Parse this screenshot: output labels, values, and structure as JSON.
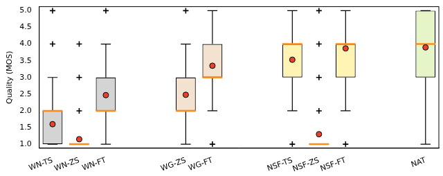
{
  "chart_data": {
    "type": "box",
    "y_label": "Quality (MOS)",
    "categories": [
      "WN-TS",
      "WN-ZS",
      "WN-FT",
      null,
      null,
      "WG-ZS",
      "WG-FT",
      null,
      null,
      "NSF-TS",
      "NSF-ZS",
      "NSF-FT",
      null,
      null,
      "NAT"
    ],
    "whisker_low": [
      1,
      1,
      1,
      null,
      null,
      1,
      2,
      null,
      null,
      2,
      1,
      2,
      null,
      null,
      1
    ],
    "q1": [
      1,
      1,
      2,
      null,
      null,
      2,
      3,
      null,
      null,
      3,
      1,
      3,
      null,
      null,
      3
    ],
    "median": [
      2,
      1,
      2,
      null,
      null,
      2,
      3,
      null,
      null,
      4,
      1,
      4,
      null,
      null,
      4
    ],
    "q3": [
      2,
      1,
      3,
      null,
      null,
      3,
      4,
      null,
      null,
      4,
      1,
      4,
      null,
      null,
      5
    ],
    "whisker_high": [
      3,
      1,
      4,
      null,
      null,
      4,
      5,
      null,
      null,
      5,
      1,
      5,
      null,
      null,
      5
    ],
    "means": [
      1.6,
      1.15,
      2.47,
      null,
      null,
      2.48,
      3.35,
      null,
      null,
      3.53,
      1.3,
      3.87,
      null,
      null,
      3.9
    ],
    "outliers": [
      [
        4,
        5
      ],
      [
        2,
        3,
        4
      ],
      [
        5
      ],
      null,
      null,
      [
        5
      ],
      [
        1
      ],
      null,
      null,
      [
        1
      ],
      [
        2,
        3,
        4,
        5
      ],
      [
        1
      ],
      null,
      null,
      []
    ],
    "colors": [
      "#d4d4d4",
      "#d4d4d4",
      "#d4d4d4",
      null,
      null,
      "#f3e2cf",
      "#f3e2cf",
      null,
      null,
      "#fff4b3",
      "#fff4b3",
      "#fff4b3",
      null,
      null,
      "#e5f5c8"
    ],
    "ylim": [
      0.88,
      5.12
    ],
    "yticks": [
      {
        "value": 1,
        "label": "1.0"
      },
      {
        "value": 1.5,
        "label": "1.5"
      },
      {
        "value": 2,
        "label": "2.0"
      },
      {
        "value": 2.5,
        "label": "2.5"
      },
      {
        "value": 3,
        "label": "3.0"
      },
      {
        "value": 3.5,
        "label": "3.5"
      },
      {
        "value": 4,
        "label": "4.0"
      },
      {
        "value": 4.5,
        "label": "4.5"
      },
      {
        "value": 5,
        "label": "5.0"
      }
    ],
    "grid": false
  }
}
